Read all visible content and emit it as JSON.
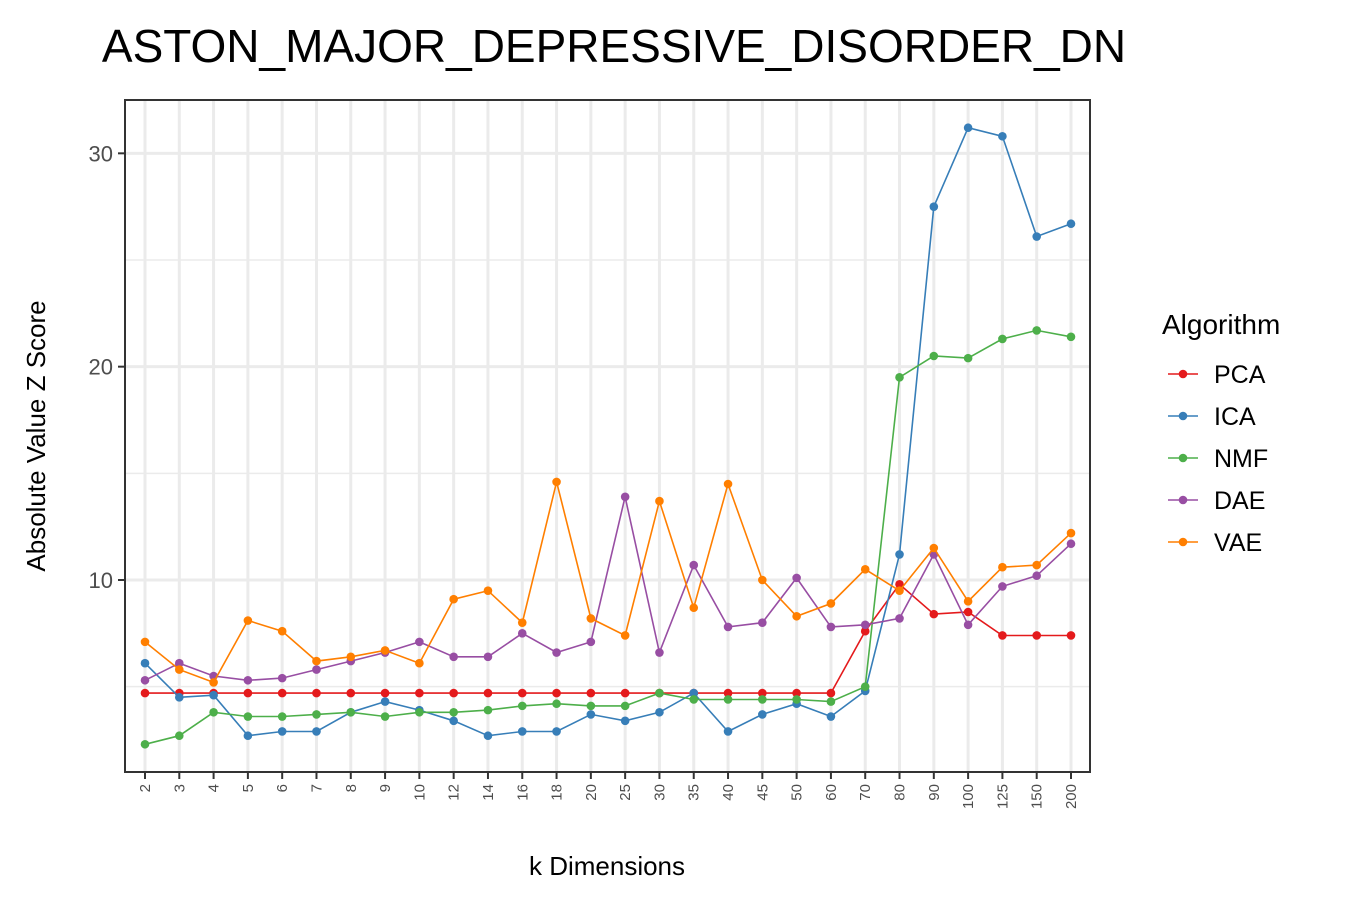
{
  "chart_data": {
    "type": "line",
    "title": "ASTON_MAJOR_DEPRESSIVE_DISORDER_DN",
    "xlabel": "k Dimensions",
    "ylabel": "Absolute Value Z Score",
    "categories": [
      "2",
      "3",
      "4",
      "5",
      "6",
      "7",
      "8",
      "9",
      "10",
      "12",
      "14",
      "16",
      "18",
      "20",
      "25",
      "30",
      "35",
      "40",
      "45",
      "50",
      "60",
      "70",
      "80",
      "90",
      "100",
      "125",
      "150",
      "200"
    ],
    "ylim": [
      1.0,
      32.5
    ],
    "yticks": [
      10,
      20,
      30
    ],
    "grid": true,
    "legend": {
      "title": "Algorithm",
      "position": "right"
    },
    "series": [
      {
        "name": "PCA",
        "color": "#e41a1c",
        "values": [
          4.7,
          4.7,
          4.7,
          4.7,
          4.7,
          4.7,
          4.7,
          4.7,
          4.7,
          4.7,
          4.7,
          4.7,
          4.7,
          4.7,
          4.7,
          4.7,
          4.7,
          4.7,
          4.7,
          4.7,
          4.7,
          7.6,
          9.8,
          8.4,
          8.5,
          7.4,
          7.4,
          7.4
        ]
      },
      {
        "name": "ICA",
        "color": "#377eb8",
        "values": [
          6.1,
          4.5,
          4.6,
          2.7,
          2.9,
          2.9,
          3.8,
          4.3,
          3.9,
          3.4,
          2.7,
          2.9,
          2.9,
          3.7,
          3.4,
          3.8,
          4.7,
          2.9,
          3.7,
          4.2,
          3.6,
          4.8,
          11.2,
          27.5,
          31.2,
          30.8,
          26.1,
          26.7
        ]
      },
      {
        "name": "NMF",
        "color": "#4daf4a",
        "values": [
          2.3,
          2.7,
          3.8,
          3.6,
          3.6,
          3.7,
          3.8,
          3.6,
          3.8,
          3.8,
          3.9,
          4.1,
          4.2,
          4.1,
          4.1,
          4.7,
          4.4,
          4.4,
          4.4,
          4.4,
          4.3,
          5.0,
          19.5,
          20.5,
          20.4,
          21.3,
          21.7,
          21.4
        ]
      },
      {
        "name": "DAE",
        "color": "#984ea3",
        "values": [
          5.3,
          6.1,
          5.5,
          5.3,
          5.4,
          5.8,
          6.2,
          6.6,
          7.1,
          6.4,
          6.4,
          7.5,
          6.6,
          7.1,
          13.9,
          6.6,
          10.7,
          7.8,
          8.0,
          10.1,
          7.8,
          7.9,
          8.2,
          11.2,
          7.9,
          9.7,
          10.2,
          11.7
        ]
      },
      {
        "name": "VAE",
        "color": "#ff7f00",
        "values": [
          7.1,
          5.8,
          5.2,
          8.1,
          7.6,
          6.2,
          6.4,
          6.7,
          6.1,
          9.1,
          9.5,
          8.0,
          14.6,
          8.2,
          7.4,
          13.7,
          8.7,
          14.5,
          10.0,
          8.3,
          8.9,
          10.5,
          9.5,
          11.5,
          9.0,
          10.6,
          10.7,
          12.2
        ]
      }
    ]
  }
}
